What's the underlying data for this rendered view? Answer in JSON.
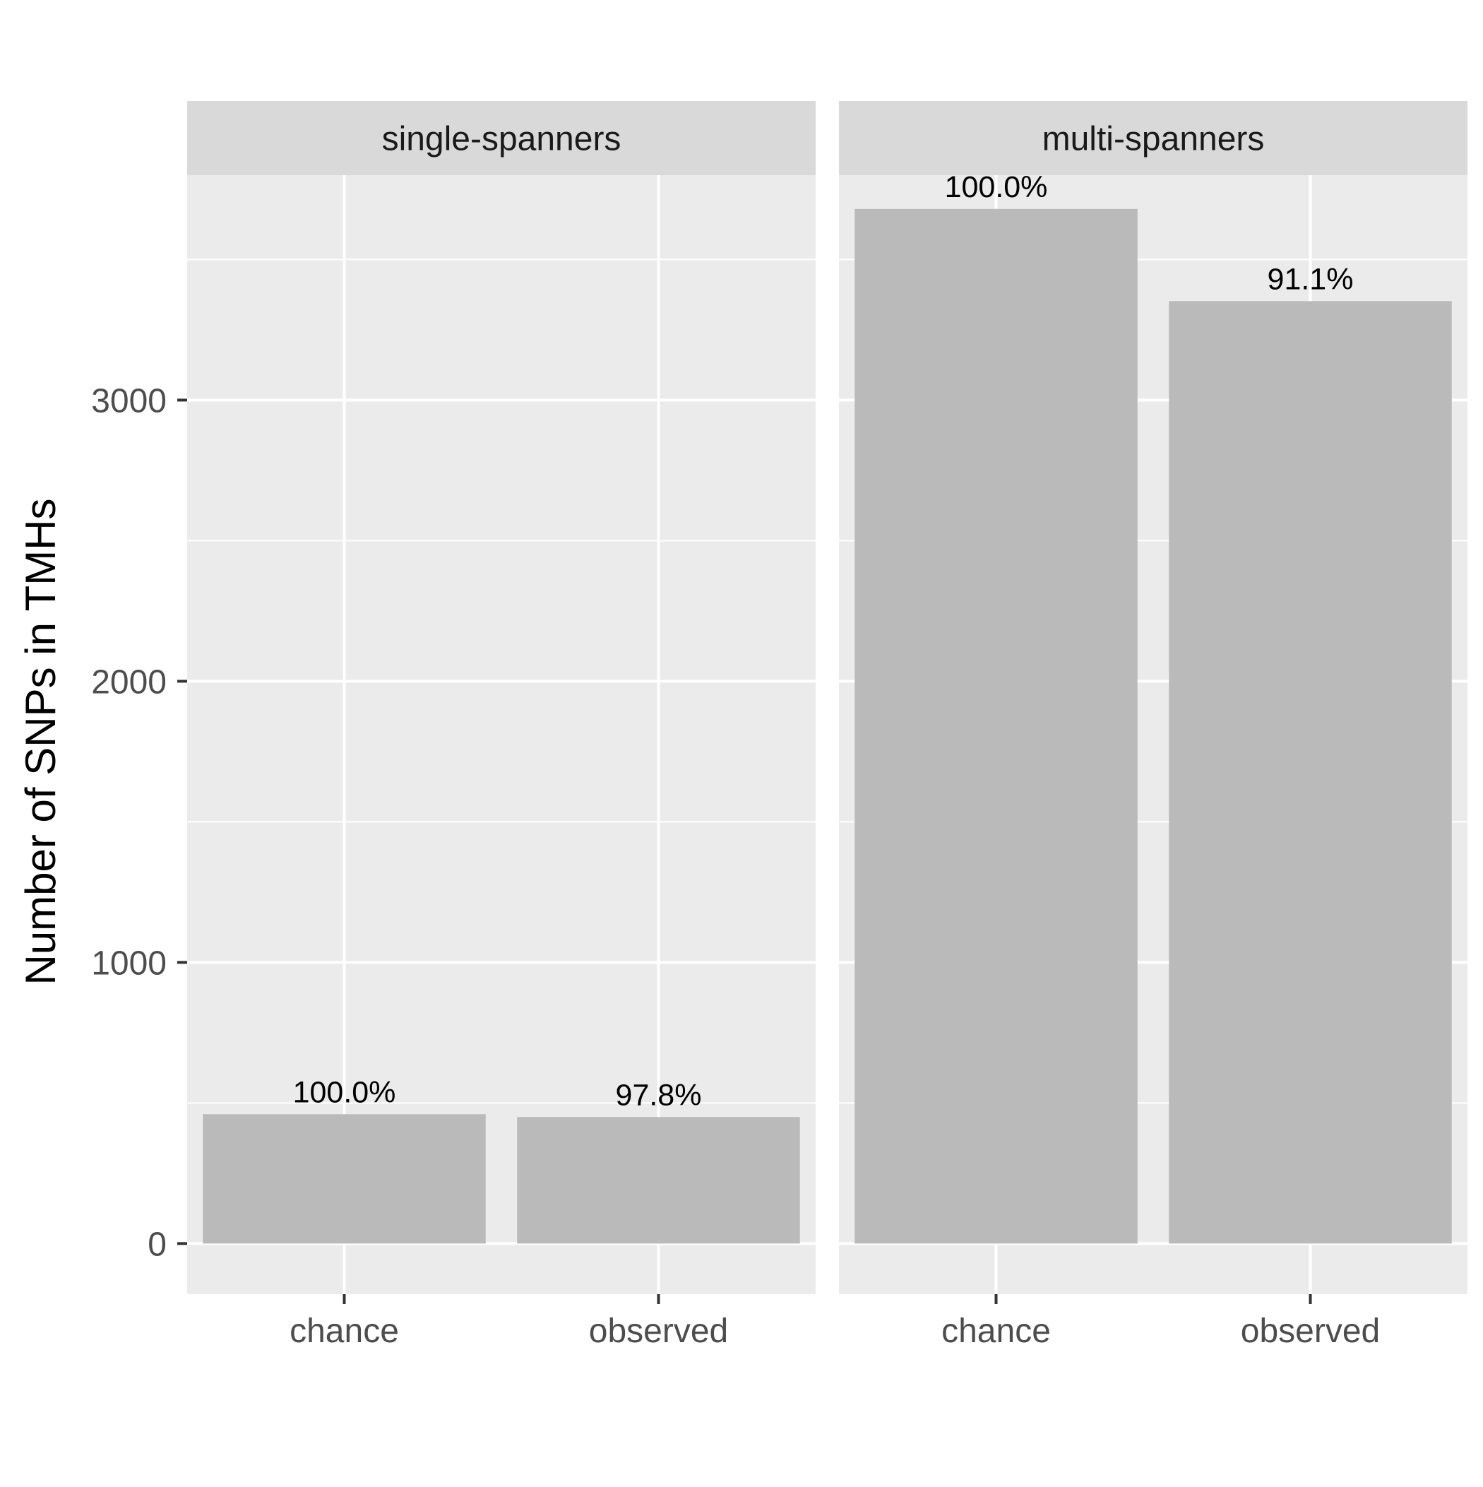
{
  "chart_data": {
    "type": "bar",
    "ylabel": "Number of SNPs in TMHs",
    "xlabel": "",
    "ylim": [
      -180,
      3800
    ],
    "y_ticks": [
      {
        "value": 0,
        "label": "0"
      },
      {
        "value": 1000,
        "label": "1000"
      },
      {
        "value": 2000,
        "label": "2000"
      },
      {
        "value": 3000,
        "label": "3000"
      }
    ],
    "y_minor": [
      500,
      1500,
      2500,
      3500
    ],
    "grid": true,
    "categories": [
      "chance",
      "observed"
    ],
    "panels": [
      {
        "strip": "single-spanners",
        "bars": [
          {
            "category": "chance",
            "value": 460,
            "label": "100.0%"
          },
          {
            "category": "observed",
            "value": 450,
            "label": "97.8%"
          }
        ]
      },
      {
        "strip": "multi-spanners",
        "bars": [
          {
            "category": "chance",
            "value": 3680,
            "label": "100.0%"
          },
          {
            "category": "observed",
            "value": 3352,
            "label": "91.1%"
          }
        ]
      }
    ]
  }
}
